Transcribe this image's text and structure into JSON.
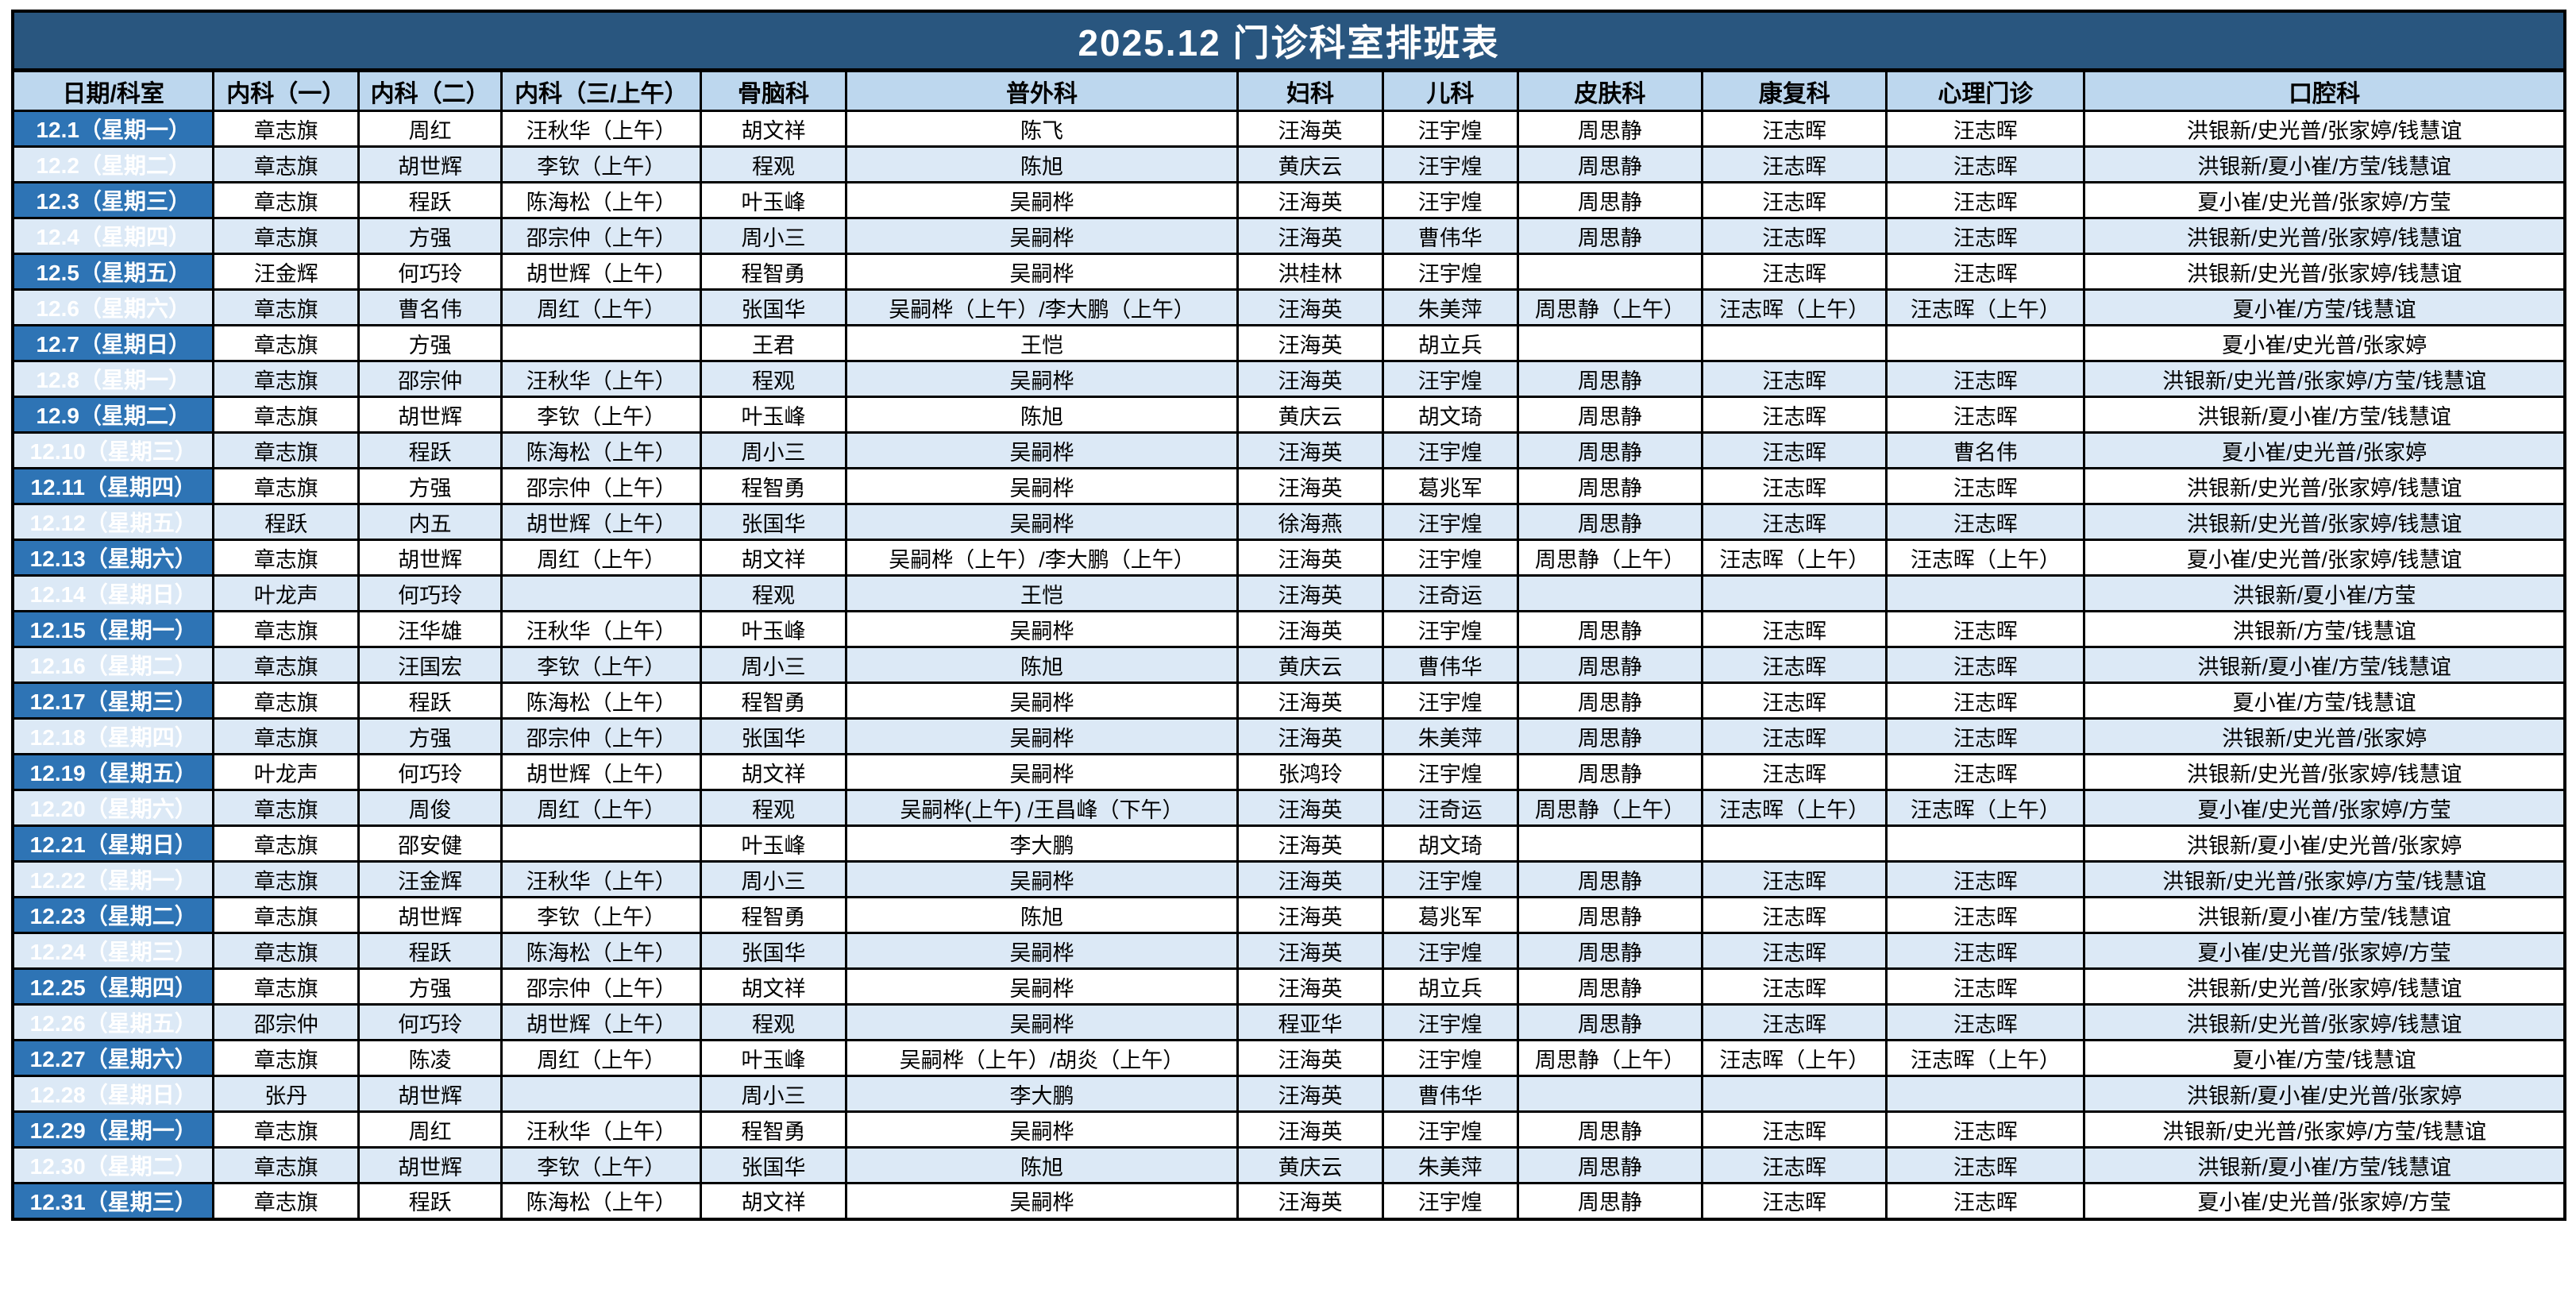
{
  "title": "2025.12  门诊科室排班表",
  "colors": {
    "title_bar_bg": "#29567F",
    "title_text": "#FFFFFF",
    "header_bg": "#BDD7EE",
    "date_col_bg": "#2E74B5",
    "date_col_text": "#FFFFFF",
    "row_bg": "#FFFFFF",
    "row_alt_bg": "#DCE9F6",
    "border": "#000000"
  },
  "table": {
    "columns": [
      "日期/科室",
      "内科（一）",
      "内科（二）",
      "内科（三/上午）",
      "骨脑科",
      "普外科",
      "妇科",
      "儿科",
      "皮肤科",
      "康复科",
      "心理门诊",
      "口腔科"
    ],
    "rows": [
      {
        "date": "12.1（星期一）",
        "cells": [
          "章志旗",
          "周红",
          "汪秋华（上午）",
          "胡文祥",
          "陈飞",
          "汪海英",
          "汪宇煌",
          "周思静",
          "汪志晖",
          "汪志晖",
          "洪银新/史光普/张家婷/钱慧谊"
        ]
      },
      {
        "date": "12.2（星期二）",
        "cells": [
          "章志旗",
          "胡世辉",
          "李钦（上午）",
          "程观",
          "陈旭",
          "黄庆云",
          "汪宇煌",
          "周思静",
          "汪志晖",
          "汪志晖",
          "洪银新/夏小崔/方莹/钱慧谊"
        ]
      },
      {
        "date": "12.3（星期三）",
        "cells": [
          "章志旗",
          "程跃",
          "陈海松（上午）",
          "叶玉峰",
          "吴嗣桦",
          "汪海英",
          "汪宇煌",
          "周思静",
          "汪志晖",
          "汪志晖",
          "夏小崔/史光普/张家婷/方莹"
        ]
      },
      {
        "date": "12.4（星期四）",
        "cells": [
          "章志旗",
          "方强",
          "邵宗仲（上午）",
          "周小三",
          "吴嗣桦",
          "汪海英",
          "曹伟华",
          "周思静",
          "汪志晖",
          "汪志晖",
          "洪银新/史光普/张家婷/钱慧谊"
        ]
      },
      {
        "date": "12.5（星期五）",
        "cells": [
          "汪金辉",
          "何巧玲",
          "胡世辉（上午）",
          "程智勇",
          "吴嗣桦",
          "洪桂林",
          "汪宇煌",
          "",
          "汪志晖",
          "汪志晖",
          "洪银新/史光普/张家婷/钱慧谊"
        ]
      },
      {
        "date": "12.6（星期六）",
        "cells": [
          "章志旗",
          "曹名伟",
          "周红（上午）",
          "张国华",
          "吴嗣桦（上午）/李大鹏（上午）",
          "汪海英",
          "朱美萍",
          "周思静（上午）",
          "汪志晖（上午）",
          "汪志晖（上午）",
          "夏小崔/方莹/钱慧谊"
        ]
      },
      {
        "date": "12.7（星期日）",
        "cells": [
          "章志旗",
          "方强",
          "",
          "王君",
          "王恺",
          "汪海英",
          "胡立兵",
          "",
          "",
          "",
          "夏小崔/史光普/张家婷"
        ]
      },
      {
        "date": "12.8（星期一）",
        "cells": [
          "章志旗",
          "邵宗仲",
          "汪秋华（上午）",
          "程观",
          "吴嗣桦",
          "汪海英",
          "汪宇煌",
          "周思静",
          "汪志晖",
          "汪志晖",
          "洪银新/史光普/张家婷/方莹/钱慧谊"
        ]
      },
      {
        "date": "12.9（星期二）",
        "cells": [
          "章志旗",
          "胡世辉",
          "李钦（上午）",
          "叶玉峰",
          "陈旭",
          "黄庆云",
          "胡文琦",
          "周思静",
          "汪志晖",
          "汪志晖",
          "洪银新/夏小崔/方莹/钱慧谊"
        ]
      },
      {
        "date": "12.10（星期三）",
        "cells": [
          "章志旗",
          "程跃",
          "陈海松（上午）",
          "周小三",
          "吴嗣桦",
          "汪海英",
          "汪宇煌",
          "周思静",
          "汪志晖",
          "曹名伟",
          "夏小崔/史光普/张家婷"
        ]
      },
      {
        "date": "12.11（星期四）",
        "cells": [
          "章志旗",
          "方强",
          "邵宗仲（上午）",
          "程智勇",
          "吴嗣桦",
          "汪海英",
          "葛兆军",
          "周思静",
          "汪志晖",
          "汪志晖",
          "洪银新/史光普/张家婷/钱慧谊"
        ]
      },
      {
        "date": "12.12（星期五）",
        "cells": [
          "程跃",
          "内五",
          "胡世辉（上午）",
          "张国华",
          "吴嗣桦",
          "徐海燕",
          "汪宇煌",
          "周思静",
          "汪志晖",
          "汪志晖",
          "洪银新/史光普/张家婷/钱慧谊"
        ]
      },
      {
        "date": "12.13（星期六）",
        "cells": [
          "章志旗",
          "胡世辉",
          "周红（上午）",
          "胡文祥",
          "吴嗣桦（上午）/李大鹏（上午）",
          "汪海英",
          "汪宇煌",
          "周思静（上午）",
          "汪志晖（上午）",
          "汪志晖（上午）",
          "夏小崔/史光普/张家婷/钱慧谊"
        ]
      },
      {
        "date": "12.14（星期日）",
        "cells": [
          "叶龙声",
          "何巧玲",
          "",
          "程观",
          "王恺",
          "汪海英",
          "汪奇运",
          "",
          "",
          "",
          "洪银新/夏小崔/方莹"
        ]
      },
      {
        "date": "12.15（星期一）",
        "cells": [
          "章志旗",
          "汪华雄",
          "汪秋华（上午）",
          "叶玉峰",
          "吴嗣桦",
          "汪海英",
          "汪宇煌",
          "周思静",
          "汪志晖",
          "汪志晖",
          "洪银新/方莹/钱慧谊"
        ]
      },
      {
        "date": "12.16（星期二）",
        "cells": [
          "章志旗",
          "汪国宏",
          "李钦（上午）",
          "周小三",
          "陈旭",
          "黄庆云",
          "曹伟华",
          "周思静",
          "汪志晖",
          "汪志晖",
          "洪银新/夏小崔/方莹/钱慧谊"
        ]
      },
      {
        "date": "12.17（星期三）",
        "cells": [
          "章志旗",
          "程跃",
          "陈海松（上午）",
          "程智勇",
          "吴嗣桦",
          "汪海英",
          "汪宇煌",
          "周思静",
          "汪志晖",
          "汪志晖",
          "夏小崔/方莹/钱慧谊"
        ]
      },
      {
        "date": "12.18（星期四）",
        "cells": [
          "章志旗",
          "方强",
          "邵宗仲（上午）",
          "张国华",
          "吴嗣桦",
          "汪海英",
          "朱美萍",
          "周思静",
          "汪志晖",
          "汪志晖",
          "洪银新/史光普/张家婷"
        ]
      },
      {
        "date": "12.19（星期五）",
        "cells": [
          "叶龙声",
          "何巧玲",
          "胡世辉（上午）",
          "胡文祥",
          "吴嗣桦",
          "张鸿玲",
          "汪宇煌",
          "周思静",
          "汪志晖",
          "汪志晖",
          "洪银新/史光普/张家婷/钱慧谊"
        ]
      },
      {
        "date": "12.20（星期六）",
        "cells": [
          "章志旗",
          "周俊",
          "周红（上午）",
          "程观",
          "吴嗣桦(上午) /王昌峰（下午）",
          "汪海英",
          "汪奇运",
          "周思静（上午）",
          "汪志晖（上午）",
          "汪志晖（上午）",
          "夏小崔/史光普/张家婷/方莹"
        ]
      },
      {
        "date": "12.21（星期日）",
        "cells": [
          "章志旗",
          "邵安健",
          "",
          "叶玉峰",
          "李大鹏",
          "汪海英",
          "胡文琦",
          "",
          "",
          "",
          "洪银新/夏小崔/史光普/张家婷"
        ]
      },
      {
        "date": "12.22（星期一）",
        "cells": [
          "章志旗",
          "汪金辉",
          "汪秋华（上午）",
          "周小三",
          "吴嗣桦",
          "汪海英",
          "汪宇煌",
          "周思静",
          "汪志晖",
          "汪志晖",
          "洪银新/史光普/张家婷/方莹/钱慧谊"
        ]
      },
      {
        "date": "12.23（星期二）",
        "cells": [
          "章志旗",
          "胡世辉",
          "李钦（上午）",
          "程智勇",
          "陈旭",
          "汪海英",
          "葛兆军",
          "周思静",
          "汪志晖",
          "汪志晖",
          "洪银新/夏小崔/方莹/钱慧谊"
        ]
      },
      {
        "date": "12.24（星期三）",
        "cells": [
          "章志旗",
          "程跃",
          "陈海松（上午）",
          "张国华",
          "吴嗣桦",
          "汪海英",
          "汪宇煌",
          "周思静",
          "汪志晖",
          "汪志晖",
          "夏小崔/史光普/张家婷/方莹"
        ]
      },
      {
        "date": "12.25（星期四）",
        "cells": [
          "章志旗",
          "方强",
          "邵宗仲（上午）",
          "胡文祥",
          "吴嗣桦",
          "汪海英",
          "胡立兵",
          "周思静",
          "汪志晖",
          "汪志晖",
          "洪银新/史光普/张家婷/钱慧谊"
        ]
      },
      {
        "date": "12.26（星期五）",
        "cells": [
          "邵宗仲",
          "何巧玲",
          "胡世辉（上午）",
          "程观",
          "吴嗣桦",
          "程亚华",
          "汪宇煌",
          "周思静",
          "汪志晖",
          "汪志晖",
          "洪银新/史光普/张家婷/钱慧谊"
        ]
      },
      {
        "date": "12.27（星期六）",
        "cells": [
          "章志旗",
          "陈凌",
          "周红（上午）",
          "叶玉峰",
          "吴嗣桦（上午）/胡炎（上午）",
          "汪海英",
          "汪宇煌",
          "周思静（上午）",
          "汪志晖（上午）",
          "汪志晖（上午）",
          "夏小崔/方莹/钱慧谊"
        ]
      },
      {
        "date": "12.28（星期日）",
        "cells": [
          "张丹",
          "胡世辉",
          "",
          "周小三",
          "李大鹏",
          "汪海英",
          "曹伟华",
          "",
          "",
          "",
          "洪银新/夏小崔/史光普/张家婷"
        ]
      },
      {
        "date": "12.29（星期一）",
        "cells": [
          "章志旗",
          "周红",
          "汪秋华（上午）",
          "程智勇",
          "吴嗣桦",
          "汪海英",
          "汪宇煌",
          "周思静",
          "汪志晖",
          "汪志晖",
          "洪银新/史光普/张家婷/方莹/钱慧谊"
        ]
      },
      {
        "date": "12.30（星期二）",
        "cells": [
          "章志旗",
          "胡世辉",
          "李钦（上午）",
          "张国华",
          "陈旭",
          "黄庆云",
          "朱美萍",
          "周思静",
          "汪志晖",
          "汪志晖",
          "洪银新/夏小崔/方莹/钱慧谊"
        ]
      },
      {
        "date": "12.31（星期三）",
        "cells": [
          "章志旗",
          "程跃",
          "陈海松（上午）",
          "胡文祥",
          "吴嗣桦",
          "汪海英",
          "汪宇煌",
          "周思静",
          "汪志晖",
          "汪志晖",
          "夏小崔/史光普/张家婷/方莹"
        ]
      }
    ]
  }
}
